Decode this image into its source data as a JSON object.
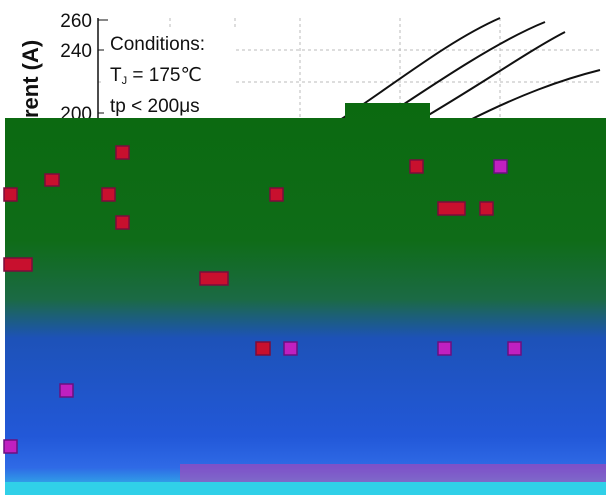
{
  "axis": {
    "label": "rent (A)",
    "ticks": [
      "260",
      "240",
      "200"
    ]
  },
  "conditions": {
    "title": "Conditions:",
    "tj": {
      "main": "T",
      "sub": "J",
      "rest": " = 175℃"
    },
    "tp": "tp < 200μs"
  }
}
